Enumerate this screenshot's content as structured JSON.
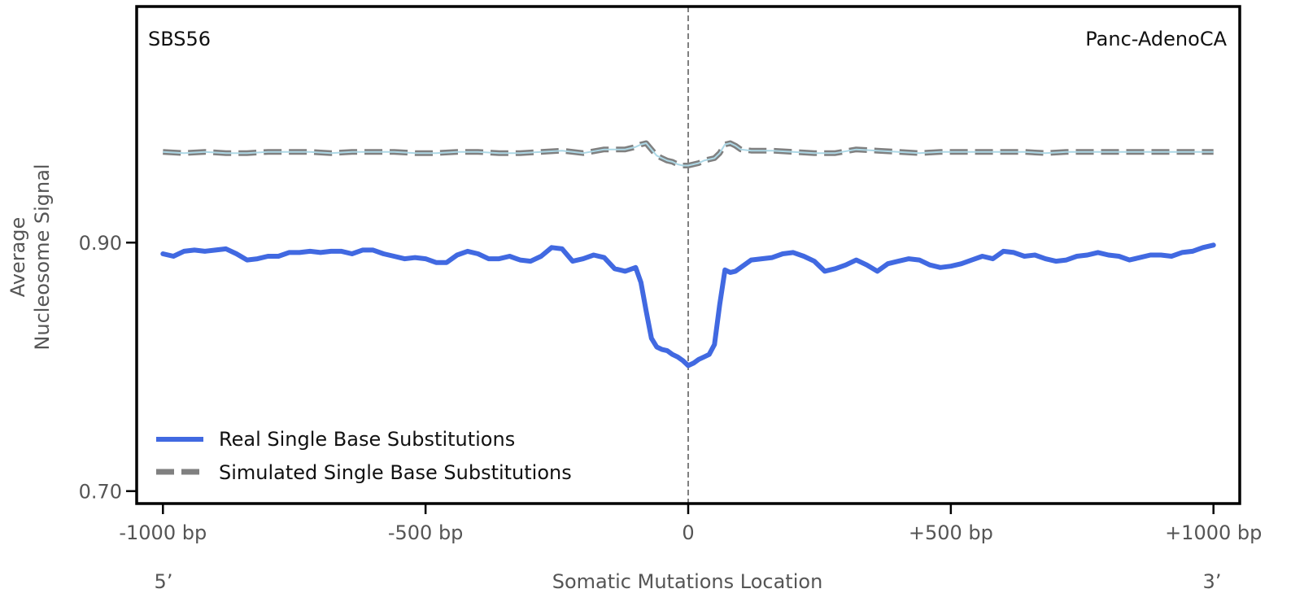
{
  "chart_data": {
    "type": "line",
    "signature_label": "SBS56",
    "cancer_type_label": "Panc-AdenoCA",
    "xlabel": "Somatic Mutations Location",
    "ylabel_line1": "Average",
    "ylabel_line2": "Nucleosome Signal",
    "xlim": [
      -1050,
      1050
    ],
    "ylim": [
      0.69,
      1.09
    ],
    "x_ticks": [
      {
        "value": -1000,
        "label": "-1000 bp"
      },
      {
        "value": -500,
        "label": "-500 bp"
      },
      {
        "value": 0,
        "label": "0"
      },
      {
        "value": 500,
        "label": "+500 bp"
      },
      {
        "value": 1000,
        "label": "+1000 bp"
      }
    ],
    "y_ticks": [
      {
        "value": 0.9,
        "label": "0.90"
      },
      {
        "value": 0.7,
        "label": "0.70"
      }
    ],
    "strand_labels": {
      "left": "5’",
      "right": "3’"
    },
    "center_line_x": 0,
    "colors": {
      "real": "#4169E1",
      "simulated": "#808080",
      "simulated_inner": "#ADD8E6",
      "center_line": "#808080"
    },
    "legend": {
      "placement": "lower-left",
      "entries": [
        {
          "label": "Real Single Base Substitutions",
          "series": "real"
        },
        {
          "label": "Simulated Single Base Substitutions",
          "series": "simulated"
        }
      ]
    },
    "series": [
      {
        "name": "Real Single Base Substitutions",
        "key": "real",
        "x": [
          -1000,
          -980,
          -960,
          -940,
          -920,
          -900,
          -880,
          -860,
          -840,
          -820,
          -800,
          -780,
          -760,
          -740,
          -720,
          -700,
          -680,
          -660,
          -640,
          -620,
          -600,
          -580,
          -560,
          -540,
          -520,
          -500,
          -480,
          -460,
          -440,
          -420,
          -400,
          -380,
          -360,
          -340,
          -320,
          -300,
          -280,
          -260,
          -240,
          -220,
          -200,
          -180,
          -160,
          -140,
          -120,
          -100,
          -90,
          -80,
          -70,
          -60,
          -50,
          -40,
          -30,
          -20,
          -10,
          0,
          10,
          20,
          30,
          40,
          50,
          60,
          70,
          80,
          90,
          100,
          120,
          140,
          160,
          180,
          200,
          220,
          240,
          260,
          280,
          300,
          320,
          340,
          360,
          380,
          400,
          420,
          440,
          460,
          480,
          500,
          520,
          540,
          560,
          580,
          600,
          620,
          640,
          660,
          680,
          700,
          720,
          740,
          760,
          780,
          800,
          820,
          840,
          860,
          880,
          900,
          920,
          940,
          960,
          980,
          1000
        ],
        "values": [
          0.891,
          0.889,
          0.893,
          0.894,
          0.893,
          0.894,
          0.895,
          0.891,
          0.886,
          0.887,
          0.889,
          0.889,
          0.892,
          0.892,
          0.893,
          0.892,
          0.893,
          0.893,
          0.891,
          0.894,
          0.894,
          0.891,
          0.889,
          0.887,
          0.888,
          0.887,
          0.884,
          0.884,
          0.89,
          0.893,
          0.891,
          0.887,
          0.887,
          0.889,
          0.886,
          0.885,
          0.889,
          0.896,
          0.895,
          0.885,
          0.887,
          0.89,
          0.888,
          0.879,
          0.877,
          0.88,
          0.868,
          0.845,
          0.823,
          0.816,
          0.814,
          0.813,
          0.81,
          0.808,
          0.805,
          0.801,
          0.803,
          0.806,
          0.808,
          0.81,
          0.818,
          0.85,
          0.878,
          0.876,
          0.877,
          0.88,
          0.886,
          0.887,
          0.888,
          0.891,
          0.892,
          0.889,
          0.885,
          0.877,
          0.879,
          0.882,
          0.886,
          0.882,
          0.877,
          0.883,
          0.885,
          0.887,
          0.886,
          0.882,
          0.88,
          0.881,
          0.883,
          0.886,
          0.889,
          0.887,
          0.893,
          0.892,
          0.889,
          0.89,
          0.887,
          0.885,
          0.886,
          0.889,
          0.89,
          0.892,
          0.89,
          0.889,
          0.886,
          0.888,
          0.89,
          0.89,
          0.889,
          0.892,
          0.893,
          0.896,
          0.898
        ]
      },
      {
        "name": "Simulated Single Base Substitutions",
        "key": "simulated",
        "x": [
          -1000,
          -960,
          -920,
          -880,
          -840,
          -800,
          -760,
          -720,
          -680,
          -640,
          -600,
          -560,
          -520,
          -480,
          -440,
          -400,
          -360,
          -320,
          -280,
          -240,
          -200,
          -160,
          -120,
          -100,
          -90,
          -80,
          -70,
          -60,
          -50,
          -40,
          -30,
          -20,
          -10,
          0,
          10,
          20,
          30,
          40,
          50,
          60,
          70,
          80,
          90,
          100,
          120,
          160,
          200,
          240,
          280,
          320,
          360,
          400,
          440,
          480,
          520,
          560,
          600,
          640,
          680,
          720,
          760,
          800,
          840,
          880,
          920,
          960,
          1000
        ],
        "values": [
          0.973,
          0.972,
          0.973,
          0.972,
          0.972,
          0.973,
          0.973,
          0.973,
          0.972,
          0.973,
          0.973,
          0.973,
          0.972,
          0.972,
          0.973,
          0.973,
          0.972,
          0.972,
          0.973,
          0.974,
          0.972,
          0.975,
          0.975,
          0.977,
          0.979,
          0.98,
          0.975,
          0.97,
          0.968,
          0.966,
          0.965,
          0.963,
          0.962,
          0.962,
          0.963,
          0.964,
          0.966,
          0.967,
          0.968,
          0.972,
          0.979,
          0.98,
          0.978,
          0.975,
          0.974,
          0.974,
          0.973,
          0.972,
          0.972,
          0.975,
          0.974,
          0.973,
          0.972,
          0.973,
          0.973,
          0.973,
          0.973,
          0.973,
          0.972,
          0.973,
          0.973,
          0.973,
          0.973,
          0.973,
          0.973,
          0.973,
          0.973
        ]
      }
    ]
  }
}
